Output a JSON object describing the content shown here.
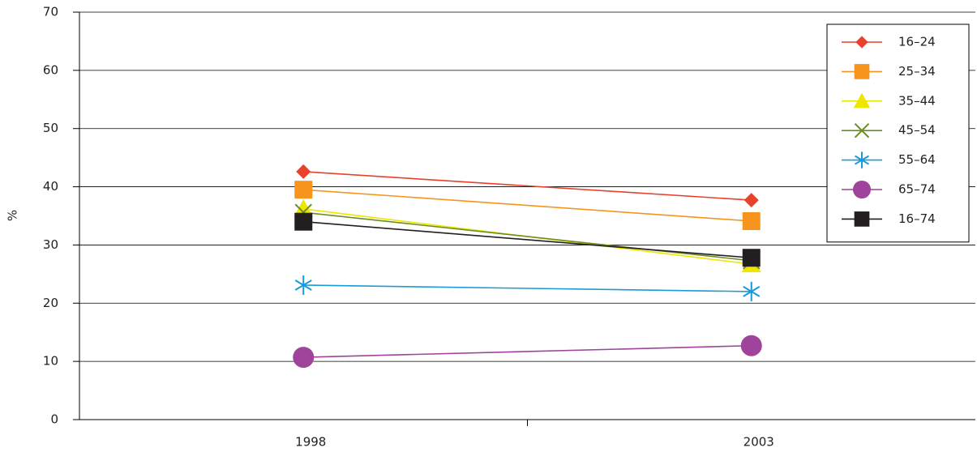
{
  "chart_data": {
    "type": "line",
    "y_label": "%",
    "categories": [
      "1998",
      "2003"
    ],
    "ylim": [
      0,
      70
    ],
    "yticks": [
      0,
      10,
      20,
      30,
      40,
      50,
      60,
      70
    ],
    "grid": true,
    "legend": "top-right",
    "series": [
      {
        "name": "16–24",
        "color": "#e8412c",
        "marker": "diamond",
        "values": [
          42.6,
          37.7
        ]
      },
      {
        "name": "25–34",
        "color": "#f7941d",
        "marker": "square",
        "values": [
          39.5,
          34.1
        ]
      },
      {
        "name": "35–44",
        "color": "#eee600",
        "marker": "triangle",
        "values": [
          36.2,
          26.7
        ]
      },
      {
        "name": "45–54",
        "color": "#6b8e23",
        "marker": "x",
        "values": [
          35.6,
          27.3
        ]
      },
      {
        "name": "55–64",
        "color": "#1a9ad6",
        "marker": "star",
        "values": [
          23.1,
          22.0
        ]
      },
      {
        "name": "65–74",
        "color": "#a0439a",
        "marker": "circle",
        "values": [
          10.7,
          12.7
        ]
      },
      {
        "name": "16–74",
        "color": "#231f20",
        "marker": "square",
        "values": [
          34.0,
          27.8
        ]
      }
    ]
  }
}
